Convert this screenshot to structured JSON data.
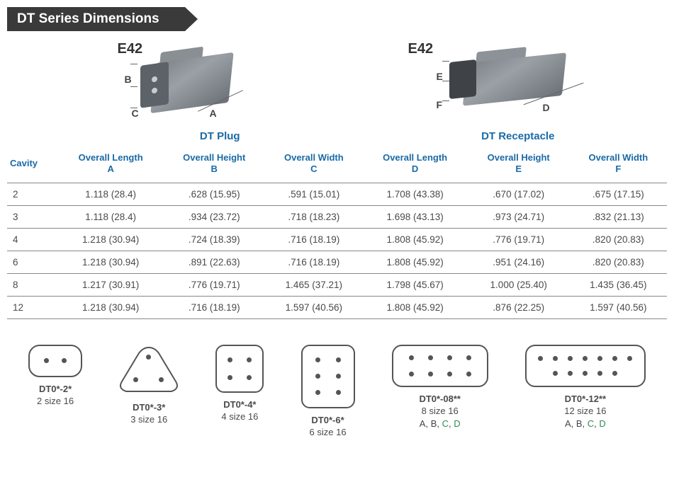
{
  "banner": "DT Series Dimensions",
  "illustration": {
    "left": {
      "code": "E42",
      "labels": {
        "A": "A",
        "B": "B",
        "C": "C"
      }
    },
    "right": {
      "code": "E42",
      "labels": {
        "D": "D",
        "E": "E",
        "F": "F"
      }
    }
  },
  "section_headers": {
    "plug": "DT Plug",
    "receptacle": "DT Receptacle"
  },
  "table": {
    "columns": {
      "cavity": "Cavity",
      "A": {
        "l1": "Overall Length",
        "l2": "A"
      },
      "B": {
        "l1": "Overall Height",
        "l2": "B"
      },
      "C": {
        "l1": "Overall Width",
        "l2": "C"
      },
      "D": {
        "l1": "Overall Length",
        "l2": "D"
      },
      "E": {
        "l1": "Overall Height",
        "l2": "E"
      },
      "F": {
        "l1": "Overall Width",
        "l2": "F"
      }
    },
    "rows": [
      {
        "cavity": "2",
        "A": "1.118 (28.4)",
        "B": ".628 (15.95)",
        "C": ".591 (15.01)",
        "D": "1.708 (43.38)",
        "E": ".670 (17.02)",
        "F": ".675 (17.15)"
      },
      {
        "cavity": "3",
        "A": "1.118 (28.4)",
        "B": ".934 (23.72)",
        "C": ".718 (18.23)",
        "D": "1.698 (43.13)",
        "E": ".973 (24.71)",
        "F": ".832 (21.13)"
      },
      {
        "cavity": "4",
        "A": "1.218 (30.94)",
        "B": ".724 (18.39)",
        "C": ".716 (18.19)",
        "D": "1.808 (45.92)",
        "E": ".776 (19.71)",
        "F": ".820 (20.83)"
      },
      {
        "cavity": "6",
        "A": "1.218 (30.94)",
        "B": ".891 (22.63)",
        "C": ".716 (18.19)",
        "D": "1.808 (45.92)",
        "E": ".951 (24.16)",
        "F": ".820 (20.83)"
      },
      {
        "cavity": "8",
        "A": "1.217 (30.91)",
        "B": ".776 (19.71)",
        "C": "1.465 (37.21)",
        "D": "1.798 (45.67)",
        "E": "1.000 (25.40)",
        "F": "1.435 (36.45)"
      },
      {
        "cavity": "12",
        "A": "1.218 (30.94)",
        "B": ".716 (18.19)",
        "C": "1.597 (40.56)",
        "D": "1.808 (45.92)",
        "E": ".876 (22.25)",
        "F": "1.597 (40.56)"
      }
    ]
  },
  "pinouts": [
    {
      "shape": "r2",
      "pins": 2,
      "code": "DT0*-2*",
      "size": "2 size 16",
      "keying": ""
    },
    {
      "shape": "tri",
      "pins": 3,
      "code": "DT0*-3*",
      "size": "3 size 16",
      "keying": ""
    },
    {
      "shape": "r4",
      "pins": 4,
      "code": "DT0*-4*",
      "size": "4 size 16",
      "keying": ""
    },
    {
      "shape": "r6",
      "pins": 6,
      "code": "DT0*-6*",
      "size": "6 size 16",
      "keying": ""
    },
    {
      "shape": "r8",
      "pins": 8,
      "code": "DT0*-08**",
      "size": "8 size 16",
      "keying": "A, B, C, D"
    },
    {
      "shape": "r12",
      "pins": 12,
      "code": "DT0*-12**",
      "size": "12 size 16",
      "keying": "A, B, C, D"
    }
  ],
  "colors": {
    "banner_bg": "#3a3a3a",
    "accent_blue": "#1a6aa6",
    "text": "#4a4a4a",
    "connector_grey": "#7d8288",
    "key_green": "#2e8b57"
  }
}
